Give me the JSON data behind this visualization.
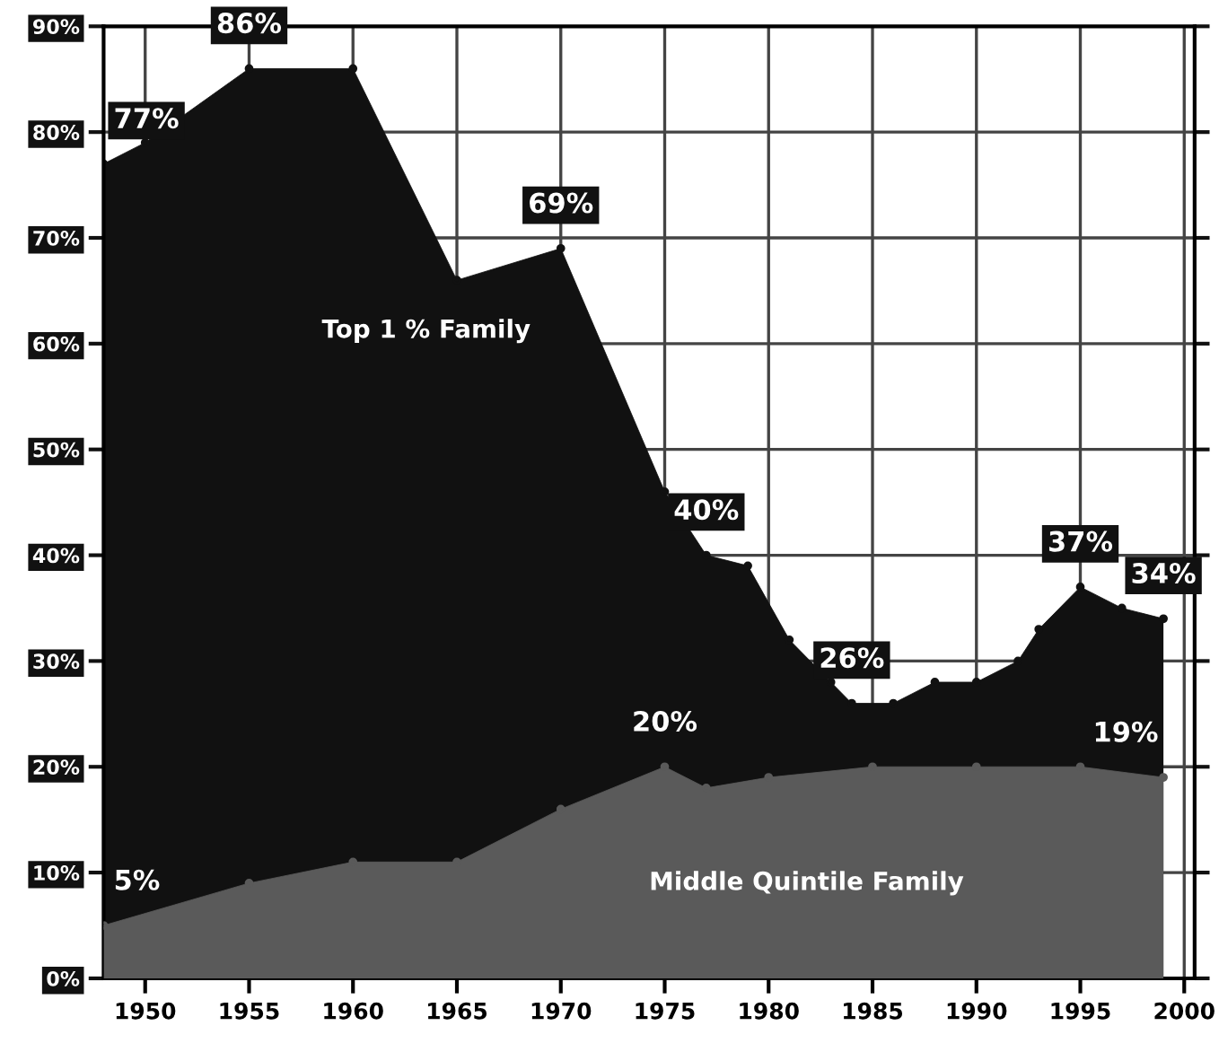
{
  "chart_data": {
    "type": "area",
    "series": [
      {
        "name": "Top 1 % Family",
        "color": "#111111",
        "x": [
          1948,
          1950,
          1955,
          1960,
          1965,
          1970,
          1975,
          1977,
          1979,
          1981,
          1983,
          1984,
          1986,
          1988,
          1990,
          1992,
          1993,
          1995,
          1997,
          1999
        ],
        "values": [
          77,
          79,
          86,
          86,
          66,
          69,
          46,
          40,
          39,
          32,
          28,
          26,
          26,
          28,
          28,
          30,
          33,
          37,
          35,
          34
        ],
        "value_labels": [
          "77%",
          null,
          "86%",
          null,
          null,
          "69%",
          null,
          "40%",
          null,
          null,
          null,
          "26%",
          null,
          null,
          null,
          null,
          null,
          "37%",
          null,
          "34%"
        ]
      },
      {
        "name": "Middle Quintile Family",
        "color": "#5a5a5a",
        "x": [
          1948,
          1955,
          1960,
          1965,
          1970,
          1975,
          1977,
          1980,
          1985,
          1990,
          1995,
          1999
        ],
        "values": [
          5,
          9,
          11,
          11,
          16,
          20,
          18,
          19,
          20,
          20,
          20,
          19
        ],
        "value_labels": [
          "5%",
          null,
          null,
          null,
          null,
          "20%",
          null,
          null,
          null,
          null,
          null,
          "19%"
        ]
      }
    ],
    "xlim": [
      1948,
      2000.5
    ],
    "xticks": [
      1950,
      1955,
      1960,
      1965,
      1970,
      1975,
      1980,
      1985,
      1990,
      1995,
      2000
    ],
    "ylim": [
      0,
      90
    ],
    "yticks": [
      {
        "value": 0,
        "label": "0%"
      },
      {
        "value": 10,
        "label": "10%"
      },
      {
        "value": 20,
        "label": "20%"
      },
      {
        "value": 30,
        "label": "30%"
      },
      {
        "value": 40,
        "label": "40%"
      },
      {
        "value": 50,
        "label": "50%"
      },
      {
        "value": 60,
        "label": "60%"
      },
      {
        "value": 70,
        "label": "70%"
      },
      {
        "value": 80,
        "label": "80%"
      },
      {
        "value": 90,
        "label": "90%"
      }
    ],
    "grid": true,
    "marker": "circle",
    "legend": false
  }
}
